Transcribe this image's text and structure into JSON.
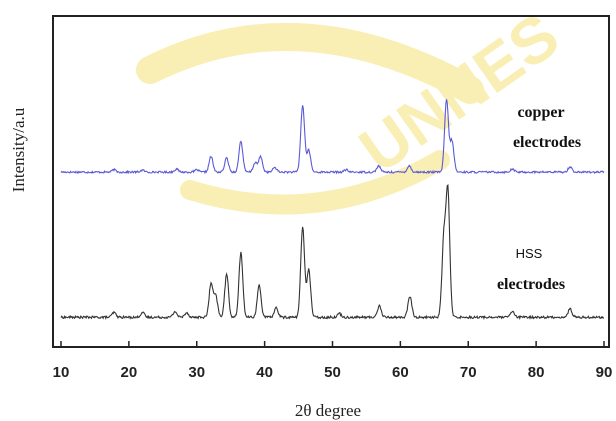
{
  "chart_data": {
    "type": "line",
    "title": "",
    "xlabel": "2θ degree",
    "ylabel": "Intensity/a.u",
    "xlim": [
      10,
      90
    ],
    "xticks": [
      10,
      20,
      30,
      40,
      50,
      60,
      70,
      80,
      90
    ],
    "yticks_shown": false,
    "grid": false,
    "series": [
      {
        "name": "",
        "labels": [
          "copper",
          "electrodes"
        ],
        "color": "#5a5ad6",
        "level": "upper",
        "baseline": 0.05,
        "noise": 0.012,
        "peaks": [
          {
            "x": 17.8,
            "h": 0.03
          },
          {
            "x": 22.0,
            "h": 0.025
          },
          {
            "x": 27.0,
            "h": 0.04
          },
          {
            "x": 30.0,
            "h": 0.03
          },
          {
            "x": 32.1,
            "h": 0.2
          },
          {
            "x": 34.4,
            "h": 0.18
          },
          {
            "x": 36.5,
            "h": 0.4
          },
          {
            "x": 38.6,
            "h": 0.12
          },
          {
            "x": 39.4,
            "h": 0.2
          },
          {
            "x": 41.5,
            "h": 0.06
          },
          {
            "x": 45.6,
            "h": 0.86
          },
          {
            "x": 46.5,
            "h": 0.28
          },
          {
            "x": 52.0,
            "h": 0.03
          },
          {
            "x": 56.8,
            "h": 0.08
          },
          {
            "x": 61.3,
            "h": 0.08
          },
          {
            "x": 66.8,
            "h": 0.93
          },
          {
            "x": 67.6,
            "h": 0.4
          },
          {
            "x": 76.5,
            "h": 0.04
          },
          {
            "x": 85.0,
            "h": 0.07
          }
        ]
      },
      {
        "name": "",
        "labels": [
          "HSS",
          "electrodes"
        ],
        "color": "#333333",
        "level": "lower",
        "baseline": 0.05,
        "noise": 0.012,
        "peaks": [
          {
            "x": 17.8,
            "h": 0.05
          },
          {
            "x": 22.0,
            "h": 0.05
          },
          {
            "x": 26.8,
            "h": 0.06
          },
          {
            "x": 28.5,
            "h": 0.05
          },
          {
            "x": 32.1,
            "h": 0.35
          },
          {
            "x": 32.8,
            "h": 0.22
          },
          {
            "x": 34.4,
            "h": 0.45
          },
          {
            "x": 36.5,
            "h": 0.68
          },
          {
            "x": 39.2,
            "h": 0.34
          },
          {
            "x": 41.7,
            "h": 0.1
          },
          {
            "x": 45.6,
            "h": 0.95
          },
          {
            "x": 46.5,
            "h": 0.5
          },
          {
            "x": 51.0,
            "h": 0.04
          },
          {
            "x": 56.9,
            "h": 0.12
          },
          {
            "x": 61.4,
            "h": 0.22
          },
          {
            "x": 66.4,
            "h": 0.8
          },
          {
            "x": 67.0,
            "h": 1.3
          },
          {
            "x": 76.5,
            "h": 0.06
          },
          {
            "x": 85.0,
            "h": 0.09
          }
        ]
      }
    ]
  },
  "watermark": {
    "text": "UNNES",
    "color": "#f5e27a"
  }
}
